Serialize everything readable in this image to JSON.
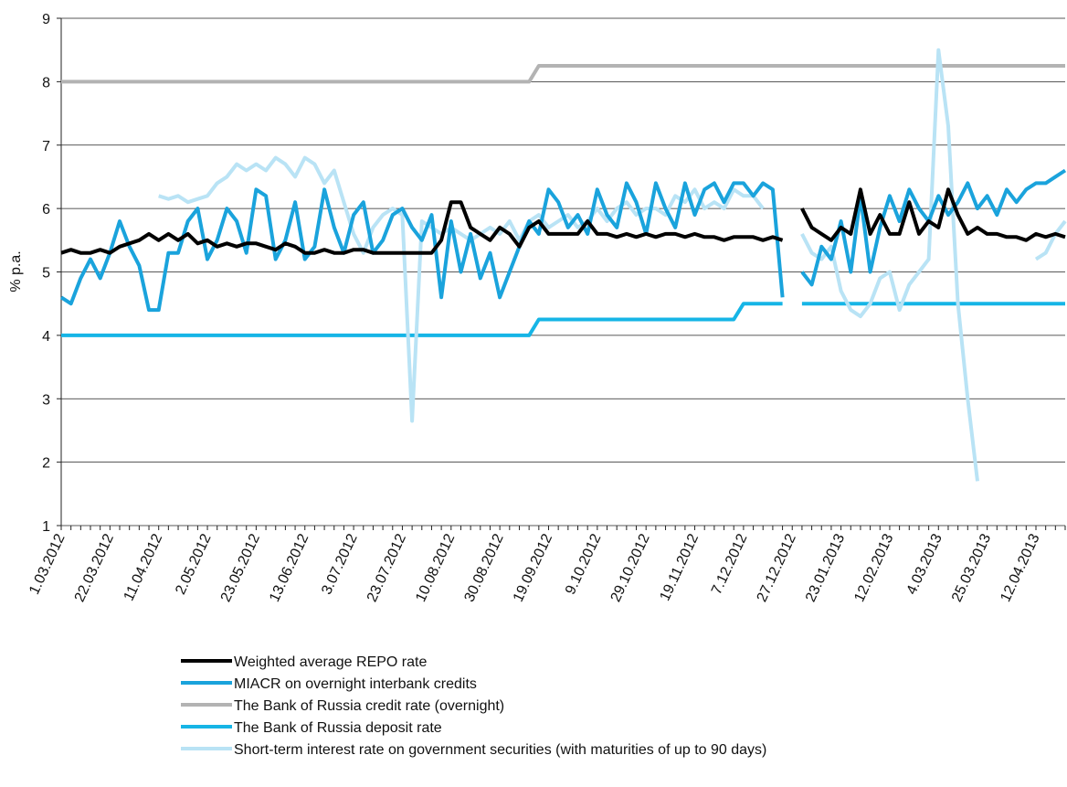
{
  "chart_data": {
    "type": "line",
    "y_label": "% p.a.",
    "categories": [
      "1.03.2012",
      null,
      null,
      null,
      null,
      "22.03.2012",
      null,
      null,
      null,
      null,
      "11.04.2012",
      null,
      null,
      null,
      null,
      "2.05.2012",
      null,
      null,
      null,
      null,
      "23.05.2012",
      null,
      null,
      null,
      null,
      "13.06.2012",
      null,
      null,
      null,
      null,
      "3.07.2012",
      null,
      null,
      null,
      null,
      "23.07.2012",
      null,
      null,
      null,
      null,
      "10.08.2012",
      null,
      null,
      null,
      null,
      "30.08.2012",
      null,
      null,
      null,
      null,
      "19.09.2012",
      null,
      null,
      null,
      null,
      "9.10.2012",
      null,
      null,
      null,
      null,
      "29.10.2012",
      null,
      null,
      null,
      null,
      "19.11.2012",
      null,
      null,
      null,
      null,
      "7.12.2012",
      null,
      null,
      null,
      null,
      "27.12.2012",
      null,
      null,
      null,
      null,
      "23.01.2013",
      null,
      null,
      null,
      null,
      "12.02.2013",
      null,
      null,
      null,
      null,
      "4.03.2013",
      null,
      null,
      null,
      null,
      "25.03.2013",
      null,
      null,
      null,
      null,
      "12.04.2013",
      null,
      null,
      null
    ],
    "series": [
      {
        "name": "Weighted average REPO rate",
        "color": "#000000",
        "values": [
          5.3,
          5.35,
          5.3,
          5.3,
          5.35,
          5.3,
          5.4,
          5.45,
          5.5,
          5.6,
          5.5,
          5.6,
          5.5,
          5.6,
          5.45,
          5.5,
          5.4,
          5.45,
          5.4,
          5.45,
          5.45,
          5.4,
          5.35,
          5.45,
          5.4,
          5.3,
          5.3,
          5.35,
          5.3,
          5.3,
          5.35,
          5.35,
          5.3,
          5.3,
          5.3,
          5.3,
          5.3,
          5.3,
          5.3,
          5.5,
          6.1,
          6.1,
          5.7,
          5.6,
          5.5,
          5.7,
          5.6,
          5.4,
          5.7,
          5.8,
          5.6,
          5.6,
          5.6,
          5.6,
          5.8,
          5.6,
          5.6,
          5.55,
          5.6,
          5.55,
          5.6,
          5.55,
          5.6,
          5.6,
          5.55,
          5.6,
          5.55,
          5.55,
          5.5,
          5.55,
          5.55,
          5.55,
          5.5,
          5.55,
          5.5,
          null,
          6.0,
          5.7,
          5.6,
          5.5,
          5.7,
          5.6,
          6.3,
          5.6,
          5.9,
          5.6,
          5.6,
          6.1,
          5.6,
          5.8,
          5.7,
          6.3,
          5.9,
          5.6,
          5.7,
          5.6,
          5.6,
          5.55,
          5.55,
          5.5,
          5.6,
          5.55,
          5.6,
          5.55
        ]
      },
      {
        "name": "MIACR on overnight interbank credits",
        "color": "#1aa3dc",
        "values": [
          4.6,
          4.5,
          4.9,
          5.2,
          4.9,
          5.3,
          5.8,
          5.4,
          5.1,
          4.4,
          4.4,
          5.3,
          5.3,
          5.8,
          6.0,
          5.2,
          5.5,
          6.0,
          5.8,
          5.3,
          6.3,
          6.2,
          5.2,
          5.5,
          6.1,
          5.2,
          5.4,
          6.3,
          5.7,
          5.3,
          5.9,
          6.1,
          5.3,
          5.5,
          5.9,
          6.0,
          5.7,
          5.5,
          5.9,
          4.6,
          5.8,
          5.0,
          5.6,
          4.9,
          5.3,
          4.6,
          5.0,
          5.4,
          5.8,
          5.6,
          6.3,
          6.1,
          5.7,
          5.9,
          5.6,
          6.3,
          5.9,
          5.7,
          6.4,
          6.1,
          5.6,
          6.4,
          6.0,
          5.7,
          6.4,
          5.9,
          6.3,
          6.4,
          6.1,
          6.4,
          6.4,
          6.2,
          6.4,
          6.3,
          4.6,
          null,
          5.0,
          4.8,
          5.4,
          5.2,
          5.8,
          5.0,
          6.2,
          5.0,
          5.7,
          6.2,
          5.8,
          6.3,
          6.0,
          5.8,
          6.2,
          5.9,
          6.1,
          6.4,
          6.0,
          6.2,
          5.9,
          6.3,
          6.1,
          6.3,
          6.4,
          6.4,
          6.5,
          6.6
        ]
      },
      {
        "name": "The Bank of Russia credit rate (overnight)",
        "color": "#b3b3b3",
        "values": [
          8,
          8,
          8,
          8,
          8,
          8,
          8,
          8,
          8,
          8,
          8,
          8,
          8,
          8,
          8,
          8,
          8,
          8,
          8,
          8,
          8,
          8,
          8,
          8,
          8,
          8,
          8,
          8,
          8,
          8,
          8,
          8,
          8,
          8,
          8,
          8,
          8,
          8,
          8,
          8,
          8,
          8,
          8,
          8,
          8,
          8,
          8,
          8,
          8,
          8.25,
          8.25,
          8.25,
          8.25,
          8.25,
          8.25,
          8.25,
          8.25,
          8.25,
          8.25,
          8.25,
          8.25,
          8.25,
          8.25,
          8.25,
          8.25,
          8.25,
          8.25,
          8.25,
          8.25,
          8.25,
          8.25,
          8.25,
          8.25,
          8.25,
          8.25,
          8.25,
          8.25,
          8.25,
          8.25,
          8.25,
          8.25,
          8.25,
          8.25,
          8.25,
          8.25,
          8.25,
          8.25,
          8.25,
          8.25,
          8.25,
          8.25,
          8.25,
          8.25,
          8.25,
          8.25,
          8.25,
          8.25,
          8.25,
          8.25,
          8.25,
          8.25,
          8.25,
          8.25,
          8.25
        ]
      },
      {
        "name": "The Bank of Russia deposit rate",
        "color": "#16b5e6",
        "values": [
          4,
          4,
          4,
          4,
          4,
          4,
          4,
          4,
          4,
          4,
          4,
          4,
          4,
          4,
          4,
          4,
          4,
          4,
          4,
          4,
          4,
          4,
          4,
          4,
          4,
          4,
          4,
          4,
          4,
          4,
          4,
          4,
          4,
          4,
          4,
          4,
          4,
          4,
          4,
          4,
          4,
          4,
          4,
          4,
          4,
          4,
          4,
          4,
          4,
          4.25,
          4.25,
          4.25,
          4.25,
          4.25,
          4.25,
          4.25,
          4.25,
          4.25,
          4.25,
          4.25,
          4.25,
          4.25,
          4.25,
          4.25,
          4.25,
          4.25,
          4.25,
          4.25,
          4.25,
          4.25,
          4.5,
          4.5,
          4.5,
          4.5,
          4.5,
          null,
          4.5,
          4.5,
          4.5,
          4.5,
          4.5,
          4.5,
          4.5,
          4.5,
          4.5,
          4.5,
          4.5,
          4.5,
          4.5,
          4.5,
          4.5,
          4.5,
          4.5,
          4.5,
          4.5,
          4.5,
          4.5,
          4.5,
          4.5,
          4.5,
          4.5,
          4.5,
          4.5,
          4.5
        ]
      },
      {
        "name": "Short-term interest rate on government securities (with maturities of up to 90 days)",
        "color": "#b9e3f5",
        "values": [
          null,
          null,
          null,
          null,
          null,
          null,
          null,
          null,
          null,
          null,
          6.2,
          6.15,
          6.2,
          6.1,
          6.15,
          6.2,
          6.4,
          6.5,
          6.7,
          6.6,
          6.7,
          6.6,
          6.8,
          6.7,
          6.5,
          6.8,
          6.7,
          6.4,
          6.6,
          6.1,
          5.6,
          5.3,
          5.7,
          5.9,
          6.0,
          5.9,
          2.65,
          5.8,
          5.7,
          5.6,
          5.7,
          5.6,
          5.5,
          5.6,
          5.7,
          5.6,
          5.8,
          5.5,
          5.8,
          5.9,
          5.7,
          5.8,
          5.9,
          5.7,
          5.8,
          6.0,
          5.8,
          6.0,
          6.1,
          5.9,
          6.0,
          6.0,
          5.9,
          6.2,
          6.1,
          6.3,
          6.0,
          6.1,
          6.0,
          6.3,
          6.2,
          6.2,
          6.0,
          null,
          null,
          null,
          5.6,
          5.3,
          5.2,
          5.4,
          4.7,
          4.4,
          4.3,
          4.5,
          4.9,
          5.0,
          4.4,
          4.8,
          5.0,
          5.2,
          8.5,
          7.3,
          4.5,
          3.0,
          1.7,
          null,
          null,
          null,
          null,
          null,
          5.2,
          5.3,
          5.6,
          5.8
        ]
      }
    ],
    "ylim": [
      1,
      9
    ],
    "yticks": [
      1,
      2,
      3,
      4,
      5,
      6,
      7,
      8,
      9
    ],
    "grid": true,
    "legend": "bottom"
  }
}
